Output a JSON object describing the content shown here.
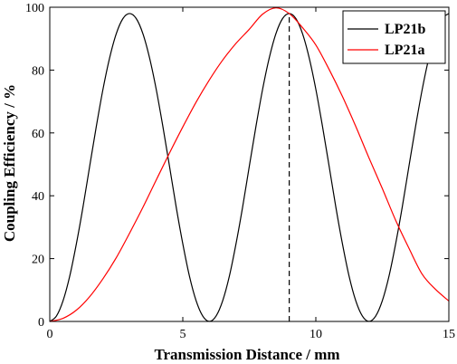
{
  "chart_data": {
    "type": "line",
    "xlabel": "Transmission Distance / mm",
    "ylabel": "Coupling Efficiency / %",
    "xlim": [
      0,
      15
    ],
    "ylim": [
      0,
      100
    ],
    "xticks": [
      0,
      5,
      10,
      15
    ],
    "yticks": [
      0,
      20,
      40,
      60,
      80,
      100
    ],
    "grid": false,
    "legend_position": "top-right",
    "series": [
      {
        "name": "LP21b",
        "color": "#000000",
        "x": [
          0,
          0.25,
          0.5,
          0.75,
          1,
          1.25,
          1.5,
          1.75,
          2,
          2.25,
          2.5,
          2.75,
          3,
          3.25,
          3.5,
          3.75,
          4,
          4.25,
          4.5,
          4.75,
          5,
          5.25,
          5.5,
          5.75,
          6,
          6.25,
          6.5,
          6.75,
          7,
          7.25,
          7.5,
          7.75,
          8,
          8.25,
          8.5,
          8.75,
          9,
          9.25,
          9.5,
          9.75,
          10,
          10.25,
          10.5,
          10.75,
          11,
          11.25,
          11.5,
          11.75,
          12,
          12.25,
          12.5,
          12.75,
          13,
          13.25,
          13.5,
          13.75,
          14,
          14.25,
          14.5,
          14.75,
          15
        ],
        "y": [
          0,
          1.7,
          6.6,
          14.4,
          24.7,
          36.5,
          49.4,
          62.1,
          73.9,
          83.9,
          91.6,
          96.4,
          98.0,
          96.4,
          91.6,
          83.9,
          73.9,
          62.1,
          49.4,
          36.5,
          24.7,
          14.4,
          6.6,
          1.7,
          0,
          1.7,
          6.6,
          14.4,
          24.7,
          36.5,
          49.4,
          62.1,
          73.9,
          83.9,
          91.6,
          96.4,
          98.0,
          96.4,
          91.6,
          83.9,
          73.9,
          62.1,
          49.4,
          36.5,
          24.7,
          14.4,
          6.6,
          1.7,
          0,
          1.7,
          6.6,
          14.4,
          24.7,
          36.5,
          49.4,
          62.1,
          73.9,
          83.9,
          91.6,
          96.4,
          98.0
        ]
      },
      {
        "name": "LP21a",
        "color": "#ff0000",
        "x": [
          0,
          0.5,
          1,
          1.5,
          2,
          2.5,
          3,
          3.5,
          4,
          4.5,
          5,
          5.5,
          6,
          6.5,
          7,
          7.5,
          8,
          8.5,
          9,
          9.5,
          10,
          10.5,
          11,
          11.5,
          12,
          12.5,
          13,
          13.5,
          14,
          14.5,
          15
        ],
        "y": [
          0,
          1.0,
          3.6,
          7.9,
          13.6,
          20.3,
          28.1,
          36.3,
          45.0,
          53.6,
          61.9,
          69.8,
          76.9,
          83.2,
          88.5,
          93.0,
          97.8,
          99.8,
          98.0,
          93.5,
          88.0,
          80.2,
          71.6,
          62.1,
          52.0,
          42.3,
          32.2,
          23.3,
          15.0,
          10.2,
          6.5
        ]
      }
    ],
    "annotations": [
      {
        "type": "vertical-dashed-line",
        "x": 9.0,
        "y_from": 0,
        "y_to": 98.0
      }
    ]
  }
}
